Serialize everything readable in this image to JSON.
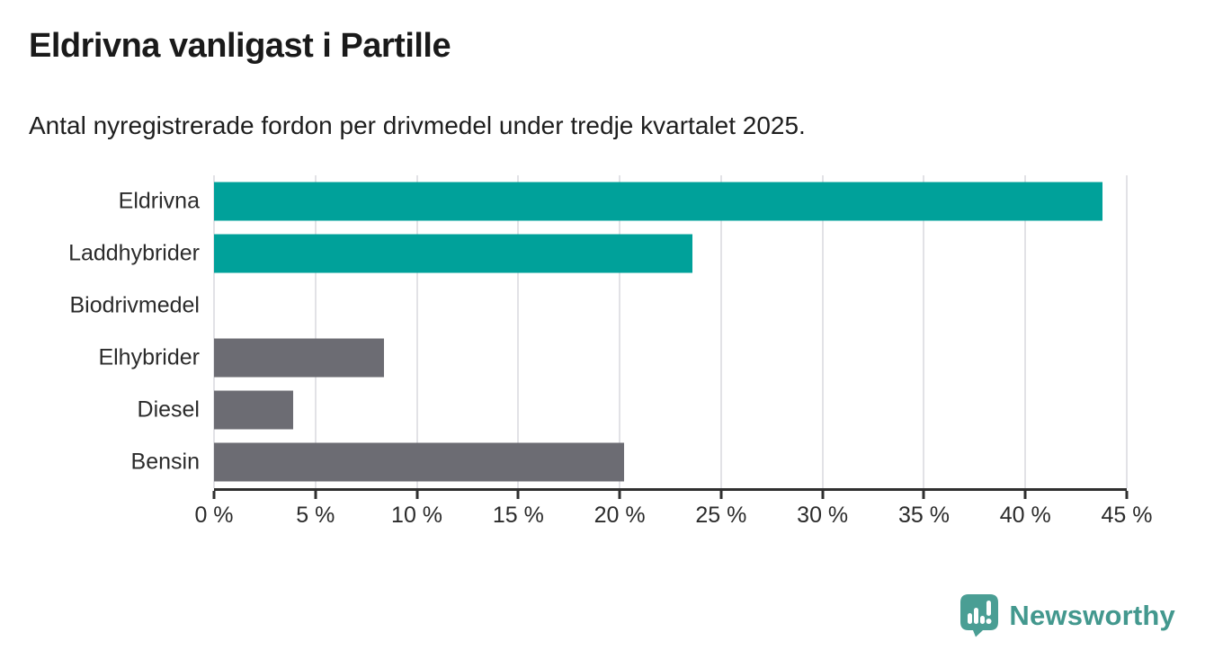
{
  "header": {
    "title": "Eldrivna vanligast i Partille",
    "subtitle": "Antal nyregistrerade fordon per drivmedel under tredje kvartalet 2025."
  },
  "chart_data": {
    "type": "bar",
    "orientation": "horizontal",
    "title": "Eldrivna vanligast i Partille",
    "subtitle": "Antal nyregistrerade fordon per drivmedel under tredje kvartalet 2025.",
    "categories": [
      "Eldrivna",
      "Laddhybrider",
      "Biodrivmedel",
      "Elhybrider",
      "Diesel",
      "Bensin"
    ],
    "values": [
      43.8,
      23.6,
      0,
      8.4,
      3.9,
      20.2
    ],
    "unit": "%",
    "bar_colors": [
      "#00a19a",
      "#00a19a",
      "#6c6c73",
      "#6c6c73",
      "#6c6c73",
      "#6c6c73"
    ],
    "xlabel": "",
    "ylabel": "",
    "xlim": [
      0,
      45
    ],
    "xticks": [
      0,
      5,
      10,
      15,
      20,
      25,
      30,
      35,
      40,
      45
    ],
    "xtick_labels": [
      "0 %",
      "5 %",
      "10 %",
      "15 %",
      "20 %",
      "25 %",
      "30 %",
      "35 %",
      "40 %",
      "45 %"
    ],
    "grid": "vertical",
    "legend": "none"
  },
  "footer": {
    "brand": "Newsworthy"
  },
  "colors": {
    "teal_bar": "#00a19a",
    "gray_bar": "#6c6c73",
    "gridline": "#e2e2e6",
    "axis": "#2f2f2f",
    "label_text": "#2b2b2b",
    "title_text": "#1a1a1a",
    "brand_teal": "#43988e",
    "logo_teal": "#4a9e94"
  }
}
